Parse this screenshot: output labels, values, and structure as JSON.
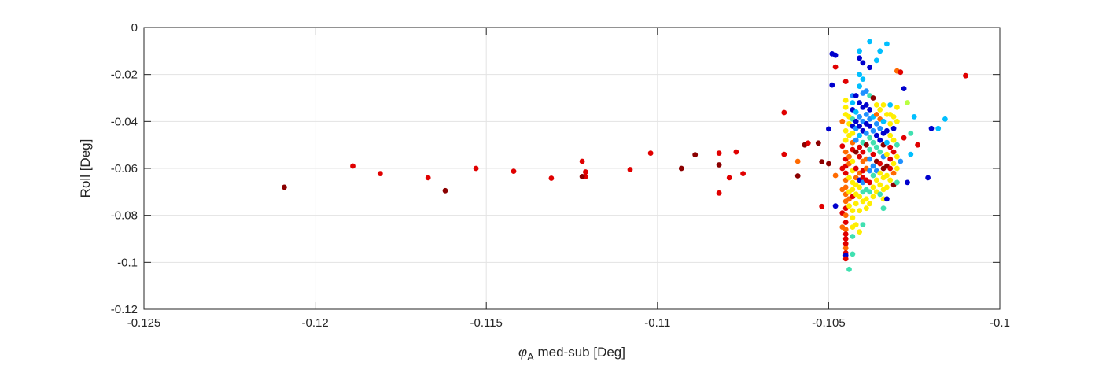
{
  "chart_data": {
    "type": "scatter",
    "xlabel": {
      "symbol": "φ",
      "subscript": "A",
      "rest": " med-sub [Deg]"
    },
    "ylabel": "Roll [Deg]",
    "xlim": [
      -0.125,
      -0.1
    ],
    "ylim": [
      -0.12,
      0
    ],
    "xticks": [
      -0.125,
      -0.12,
      -0.115,
      -0.11,
      -0.105,
      -0.1
    ],
    "xtick_labels": [
      "-0.125",
      "-0.12",
      "-0.115",
      "-0.11",
      "-0.105",
      "-0.1"
    ],
    "yticks": [
      0,
      -0.02,
      -0.04,
      -0.06,
      -0.08,
      -0.1,
      -0.12
    ],
    "ytick_labels": [
      "0",
      "-0.02",
      "-0.04",
      "-0.06",
      "-0.08",
      "-0.1",
      "-0.12"
    ],
    "grid": true,
    "colormap": "jet",
    "points": [
      [
        -0.1209,
        -0.068,
        "#8b0000"
      ],
      [
        -0.1189,
        -0.059,
        "#e00000"
      ],
      [
        -0.1181,
        -0.0622,
        "#e00000"
      ],
      [
        -0.1167,
        -0.064,
        "#e00000"
      ],
      [
        -0.1162,
        -0.0695,
        "#8b0000"
      ],
      [
        -0.1153,
        -0.06,
        "#e00000"
      ],
      [
        -0.1142,
        -0.0612,
        "#e00000"
      ],
      [
        -0.1131,
        -0.0642,
        "#e00000"
      ],
      [
        -0.1122,
        -0.057,
        "#e00000"
      ],
      [
        -0.1121,
        -0.0615,
        "#e00000"
      ],
      [
        -0.1121,
        -0.0635,
        "#e00000"
      ],
      [
        -0.1122,
        -0.0635,
        "#8b0000"
      ],
      [
        -0.1108,
        -0.0605,
        "#e00000"
      ],
      [
        -0.1102,
        -0.0535,
        "#e00000"
      ],
      [
        -0.1093,
        -0.06,
        "#8b0000"
      ],
      [
        -0.1089,
        -0.0542,
        "#8b0000"
      ],
      [
        -0.1082,
        -0.0535,
        "#e00000"
      ],
      [
        -0.1082,
        -0.0585,
        "#8b0000"
      ],
      [
        -0.1082,
        -0.0705,
        "#e00000"
      ],
      [
        -0.1079,
        -0.064,
        "#e00000"
      ],
      [
        -0.1077,
        -0.053,
        "#e00000"
      ],
      [
        -0.1075,
        -0.0622,
        "#e00000"
      ],
      [
        -0.1063,
        -0.0362,
        "#e00000"
      ],
      [
        -0.1063,
        -0.054,
        "#e00000"
      ],
      [
        -0.1059,
        -0.0632,
        "#8b0000"
      ],
      [
        -0.1059,
        -0.057,
        "#ff6a00"
      ],
      [
        -0.1057,
        -0.05,
        "#8b0000"
      ],
      [
        -0.1056,
        -0.0492,
        "#e00000"
      ],
      [
        -0.1053,
        -0.0492,
        "#8b0000"
      ],
      [
        -0.1052,
        -0.0572,
        "#8b0000"
      ],
      [
        -0.1052,
        -0.0762,
        "#e00000"
      ],
      [
        -0.105,
        -0.0432,
        "#0000cd"
      ],
      [
        -0.105,
        -0.058,
        "#8b0000"
      ],
      [
        -0.1049,
        -0.0112,
        "#0000cd"
      ],
      [
        -0.1049,
        -0.0245,
        "#0000cd"
      ],
      [
        -0.1048,
        -0.0118,
        "#0000cd"
      ],
      [
        -0.1048,
        -0.0168,
        "#e00000"
      ],
      [
        -0.1048,
        -0.063,
        "#ff6a00"
      ],
      [
        -0.1048,
        -0.076,
        "#0000cd"
      ],
      [
        -0.1046,
        -0.04,
        "#ff6a00"
      ],
      [
        -0.1046,
        -0.0505,
        "#e00000"
      ],
      [
        -0.1046,
        -0.06,
        "#e00000"
      ],
      [
        -0.1046,
        -0.069,
        "#ff6a00"
      ],
      [
        -0.1046,
        -0.079,
        "#e00000"
      ],
      [
        -0.1046,
        -0.085,
        "#ff6a00"
      ],
      [
        -0.1045,
        -0.023,
        "#e00000"
      ],
      [
        -0.1045,
        -0.031,
        "#ffee00"
      ],
      [
        -0.1045,
        -0.034,
        "#ffee00"
      ],
      [
        -0.1045,
        -0.037,
        "#ffee00"
      ],
      [
        -0.1045,
        -0.044,
        "#ffee00"
      ],
      [
        -0.1045,
        -0.048,
        "#ffee00"
      ],
      [
        -0.1045,
        -0.053,
        "#ff6a00"
      ],
      [
        -0.1045,
        -0.056,
        "#e00000"
      ],
      [
        -0.1045,
        -0.059,
        "#e00000"
      ],
      [
        -0.1045,
        -0.062,
        "#e00000"
      ],
      [
        -0.1045,
        -0.065,
        "#ff6a00"
      ],
      [
        -0.1045,
        -0.068,
        "#ff6a00"
      ],
      [
        -0.1045,
        -0.071,
        "#ff6a00"
      ],
      [
        -0.1045,
        -0.074,
        "#ff6a00"
      ],
      [
        -0.1045,
        -0.077,
        "#e00000"
      ],
      [
        -0.1045,
        -0.08,
        "#ff6a00"
      ],
      [
        -0.1045,
        -0.083,
        "#e00000"
      ],
      [
        -0.1045,
        -0.086,
        "#ff6a00"
      ],
      [
        -0.1045,
        -0.088,
        "#e00000"
      ],
      [
        -0.1045,
        -0.09,
        "#e00000"
      ],
      [
        -0.1045,
        -0.092,
        "#e00000"
      ],
      [
        -0.1045,
        -0.094,
        "#ff6a00"
      ],
      [
        -0.1045,
        -0.096,
        "#e00000"
      ],
      [
        -0.1045,
        -0.097,
        "#0000cd"
      ],
      [
        -0.1045,
        -0.0985,
        "#e00000"
      ],
      [
        -0.1044,
        -0.103,
        "#40e0b0"
      ],
      [
        -0.1043,
        -0.0965,
        "#40e0b0"
      ],
      [
        -0.1044,
        -0.038,
        "#ffee00"
      ],
      [
        -0.1044,
        -0.041,
        "#ffee00"
      ],
      [
        -0.1044,
        -0.046,
        "#ffee00"
      ],
      [
        -0.1044,
        -0.055,
        "#ff6a00"
      ],
      [
        -0.1044,
        -0.058,
        "#ff6a00"
      ],
      [
        -0.1044,
        -0.064,
        "#ffee00"
      ],
      [
        -0.1044,
        -0.07,
        "#ffee00"
      ],
      [
        -0.1044,
        -0.073,
        "#ff6a00"
      ],
      [
        -0.1044,
        -0.076,
        "#ffee00"
      ],
      [
        -0.1043,
        -0.029,
        "#1e90ff"
      ],
      [
        -0.1043,
        -0.032,
        "#00bfff"
      ],
      [
        -0.1043,
        -0.035,
        "#0000cd"
      ],
      [
        -0.1043,
        -0.039,
        "#40e0b0"
      ],
      [
        -0.1043,
        -0.042,
        "#0000cd"
      ],
      [
        -0.1043,
        -0.045,
        "#ffee00"
      ],
      [
        -0.1043,
        -0.049,
        "#ff6a00"
      ],
      [
        -0.1043,
        -0.052,
        "#e00000"
      ],
      [
        -0.1043,
        -0.057,
        "#ffee00"
      ],
      [
        -0.1043,
        -0.061,
        "#ffee00"
      ],
      [
        -0.1043,
        -0.066,
        "#ffee00"
      ],
      [
        -0.1043,
        -0.069,
        "#ffee00"
      ],
      [
        -0.1043,
        -0.072,
        "#e00000"
      ],
      [
        -0.1043,
        -0.078,
        "#ffee00"
      ],
      [
        -0.1043,
        -0.081,
        "#ffee00"
      ],
      [
        -0.1043,
        -0.085,
        "#ffee00"
      ],
      [
        -0.1043,
        -0.089,
        "#40e0b0"
      ],
      [
        -0.1042,
        -0.029,
        "#0000cd"
      ],
      [
        -0.1042,
        -0.036,
        "#00bfff"
      ],
      [
        -0.1042,
        -0.04,
        "#0000cd"
      ],
      [
        -0.1042,
        -0.043,
        "#1e90ff"
      ],
      [
        -0.1042,
        -0.048,
        "#1e90ff"
      ],
      [
        -0.1042,
        -0.053,
        "#8b0000"
      ],
      [
        -0.1042,
        -0.06,
        "#e00000"
      ],
      [
        -0.1042,
        -0.064,
        "#ff6a00"
      ],
      [
        -0.1042,
        -0.067,
        "#ffee00"
      ],
      [
        -0.1042,
        -0.071,
        "#ffee00"
      ],
      [
        -0.1042,
        -0.075,
        "#ffee00"
      ],
      [
        -0.1042,
        -0.084,
        "#ffee00"
      ],
      [
        -0.1041,
        -0.01,
        "#00bfff"
      ],
      [
        -0.1041,
        -0.013,
        "#0000cd"
      ],
      [
        -0.1041,
        -0.02,
        "#00bfff"
      ],
      [
        -0.1041,
        -0.025,
        "#00bfff"
      ],
      [
        -0.1041,
        -0.032,
        "#0000cd"
      ],
      [
        -0.1041,
        -0.038,
        "#1e90ff"
      ],
      [
        -0.1041,
        -0.042,
        "#0000cd"
      ],
      [
        -0.1041,
        -0.046,
        "#00bfff"
      ],
      [
        -0.1041,
        -0.051,
        "#e00000"
      ],
      [
        -0.1041,
        -0.055,
        "#e00000"
      ],
      [
        -0.1041,
        -0.062,
        "#ff6a00"
      ],
      [
        -0.1041,
        -0.065,
        "#0000cd"
      ],
      [
        -0.1041,
        -0.068,
        "#ffee00"
      ],
      [
        -0.1041,
        -0.072,
        "#ffee00"
      ],
      [
        -0.1041,
        -0.078,
        "#ffee00"
      ],
      [
        -0.1041,
        -0.087,
        "#ffee00"
      ],
      [
        -0.104,
        -0.015,
        "#0000cd"
      ],
      [
        -0.104,
        -0.022,
        "#00bfff"
      ],
      [
        -0.104,
        -0.028,
        "#1e90ff"
      ],
      [
        -0.104,
        -0.034,
        "#0000cd"
      ],
      [
        -0.104,
        -0.04,
        "#1e90ff"
      ],
      [
        -0.104,
        -0.044,
        "#0000cd"
      ],
      [
        -0.104,
        -0.049,
        "#40e0b0"
      ],
      [
        -0.104,
        -0.053,
        "#e00000"
      ],
      [
        -0.104,
        -0.057,
        "#ff6a00"
      ],
      [
        -0.104,
        -0.061,
        "#e00000"
      ],
      [
        -0.104,
        -0.064,
        "#e00000"
      ],
      [
        -0.104,
        -0.066,
        "#1e90ff"
      ],
      [
        -0.104,
        -0.07,
        "#40e0b0"
      ],
      [
        -0.104,
        -0.074,
        "#ffee00"
      ],
      [
        -0.104,
        -0.084,
        "#40e0b0"
      ],
      [
        -0.1039,
        -0.027,
        "#1e90ff"
      ],
      [
        -0.1039,
        -0.033,
        "#0000cd"
      ],
      [
        -0.1039,
        -0.037,
        "#1e90ff"
      ],
      [
        -0.1039,
        -0.041,
        "#0000cd"
      ],
      [
        -0.1039,
        -0.045,
        "#1e90ff"
      ],
      [
        -0.1039,
        -0.05,
        "#8b0000"
      ],
      [
        -0.1039,
        -0.056,
        "#ff6a00"
      ],
      [
        -0.1039,
        -0.06,
        "#ff6a00"
      ],
      [
        -0.1039,
        -0.065,
        "#e00000"
      ],
      [
        -0.1039,
        -0.069,
        "#40e0b0"
      ],
      [
        -0.1039,
        -0.073,
        "#ffee00"
      ],
      [
        -0.1039,
        -0.077,
        "#ffee00"
      ],
      [
        -0.1038,
        -0.006,
        "#00bfff"
      ],
      [
        -0.1038,
        -0.017,
        "#0000cd"
      ],
      [
        -0.1038,
        -0.029,
        "#40e0b0"
      ],
      [
        -0.1038,
        -0.035,
        "#0000cd"
      ],
      [
        -0.1038,
        -0.039,
        "#1e90ff"
      ],
      [
        -0.1038,
        -0.042,
        "#0000cd"
      ],
      [
        -0.1038,
        -0.047,
        "#40e0b0"
      ],
      [
        -0.1038,
        -0.052,
        "#40e0b0"
      ],
      [
        -0.1038,
        -0.056,
        "#1e90ff"
      ],
      [
        -0.1038,
        -0.061,
        "#1e90ff"
      ],
      [
        -0.1038,
        -0.066,
        "#e00000"
      ],
      [
        -0.1038,
        -0.07,
        "#40e0b0"
      ],
      [
        -0.1038,
        -0.075,
        "#ffee00"
      ],
      [
        -0.1037,
        -0.03,
        "#8b0000"
      ],
      [
        -0.1037,
        -0.038,
        "#00bfff"
      ],
      [
        -0.1037,
        -0.044,
        "#1e90ff"
      ],
      [
        -0.1037,
        -0.049,
        "#40e0b0"
      ],
      [
        -0.1037,
        -0.054,
        "#e00000"
      ],
      [
        -0.1037,
        -0.059,
        "#1e90ff"
      ],
      [
        -0.1037,
        -0.063,
        "#40e0b0"
      ],
      [
        -0.1037,
        -0.068,
        "#ffee00"
      ],
      [
        -0.1037,
        -0.072,
        "#ffee00"
      ],
      [
        -0.1036,
        -0.014,
        "#00bfff"
      ],
      [
        -0.1036,
        -0.033,
        "#ffee00"
      ],
      [
        -0.1036,
        -0.037,
        "#ff6a00"
      ],
      [
        -0.1036,
        -0.041,
        "#1e90ff"
      ],
      [
        -0.1036,
        -0.046,
        "#0000cd"
      ],
      [
        -0.1036,
        -0.051,
        "#40e0b0"
      ],
      [
        -0.1036,
        -0.057,
        "#8b0000"
      ],
      [
        -0.1036,
        -0.061,
        "#1e90ff"
      ],
      [
        -0.1036,
        -0.065,
        "#ffee00"
      ],
      [
        -0.1036,
        -0.07,
        "#ffee00"
      ],
      [
        -0.1035,
        -0.01,
        "#00bfff"
      ],
      [
        -0.1035,
        -0.035,
        "#ffee00"
      ],
      [
        -0.1035,
        -0.039,
        "#ff6a00"
      ],
      [
        -0.1035,
        -0.043,
        "#1e90ff"
      ],
      [
        -0.1035,
        -0.048,
        "#0000cd"
      ],
      [
        -0.1035,
        -0.053,
        "#40e0b0"
      ],
      [
        -0.1035,
        -0.058,
        "#e00000"
      ],
      [
        -0.1035,
        -0.062,
        "#ffee00"
      ],
      [
        -0.1035,
        -0.067,
        "#ffee00"
      ],
      [
        -0.1035,
        -0.071,
        "#40e0b0"
      ],
      [
        -0.1034,
        -0.033,
        "#ffee00"
      ],
      [
        -0.1034,
        -0.04,
        "#00bfff"
      ],
      [
        -0.1034,
        -0.045,
        "#0000cd"
      ],
      [
        -0.1034,
        -0.05,
        "#8b0000"
      ],
      [
        -0.1034,
        -0.055,
        "#1e90ff"
      ],
      [
        -0.1034,
        -0.06,
        "#8b0000"
      ],
      [
        -0.1034,
        -0.064,
        "#ffee00"
      ],
      [
        -0.1034,
        -0.069,
        "#ffee00"
      ],
      [
        -0.1034,
        -0.073,
        "#ffee00"
      ],
      [
        -0.1034,
        -0.077,
        "#40e0b0"
      ],
      [
        -0.1033,
        -0.007,
        "#00bfff"
      ],
      [
        -0.1033,
        -0.037,
        "#ffee00"
      ],
      [
        -0.1033,
        -0.044,
        "#0000cd"
      ],
      [
        -0.1033,
        -0.049,
        "#00bfff"
      ],
      [
        -0.1033,
        -0.054,
        "#ffee00"
      ],
      [
        -0.1033,
        -0.059,
        "#8b0000"
      ],
      [
        -0.1033,
        -0.063,
        "#ffee00"
      ],
      [
        -0.1033,
        -0.068,
        "#ffee00"
      ],
      [
        -0.1033,
        -0.073,
        "#0000cd"
      ],
      [
        -0.1032,
        -0.033,
        "#00bfff"
      ],
      [
        -0.1032,
        -0.037,
        "#ffee00"
      ],
      [
        -0.1032,
        -0.041,
        "#ffee00"
      ],
      [
        -0.1032,
        -0.046,
        "#ffee00"
      ],
      [
        -0.1032,
        -0.051,
        "#e00000"
      ],
      [
        -0.1032,
        -0.056,
        "#e00000"
      ],
      [
        -0.1032,
        -0.06,
        "#e00000"
      ],
      [
        -0.1032,
        -0.065,
        "#ffee00"
      ],
      [
        -0.1031,
        -0.038,
        "#ffee00"
      ],
      [
        -0.1031,
        -0.043,
        "#0000cd"
      ],
      [
        -0.1031,
        -0.048,
        "#ffee00"
      ],
      [
        -0.1031,
        -0.053,
        "#e00000"
      ],
      [
        -0.1031,
        -0.058,
        "#ffee00"
      ],
      [
        -0.1031,
        -0.062,
        "#ff6a00"
      ],
      [
        -0.1031,
        -0.067,
        "#8b0000"
      ],
      [
        -0.103,
        -0.0185,
        "#ff6a00"
      ],
      [
        -0.103,
        -0.034,
        "#ffee00"
      ],
      [
        -0.103,
        -0.04,
        "#ffee00"
      ],
      [
        -0.103,
        -0.05,
        "#40e0b0"
      ],
      [
        -0.103,
        -0.055,
        "#ffee00"
      ],
      [
        -0.103,
        -0.06,
        "#ffee00"
      ],
      [
        -0.103,
        -0.066,
        "#40e0b0"
      ],
      [
        -0.1029,
        -0.019,
        "#e00000"
      ],
      [
        -0.1029,
        -0.057,
        "#1e90ff"
      ],
      [
        -0.1028,
        -0.026,
        "#0000cd"
      ],
      [
        -0.1028,
        -0.047,
        "#e00000"
      ],
      [
        -0.1027,
        -0.032,
        "#b8ff40"
      ],
      [
        -0.1027,
        -0.066,
        "#0000cd"
      ],
      [
        -0.1026,
        -0.045,
        "#40e0b0"
      ],
      [
        -0.1026,
        -0.054,
        "#00bfff"
      ],
      [
        -0.1025,
        -0.038,
        "#00bfff"
      ],
      [
        -0.1024,
        -0.05,
        "#e00000"
      ],
      [
        -0.1021,
        -0.064,
        "#0000cd"
      ],
      [
        -0.102,
        -0.043,
        "#0000cd"
      ],
      [
        -0.1018,
        -0.043,
        "#00bfff"
      ],
      [
        -0.1016,
        -0.039,
        "#00bfff"
      ],
      [
        -0.101,
        -0.0205,
        "#e00000"
      ]
    ]
  }
}
